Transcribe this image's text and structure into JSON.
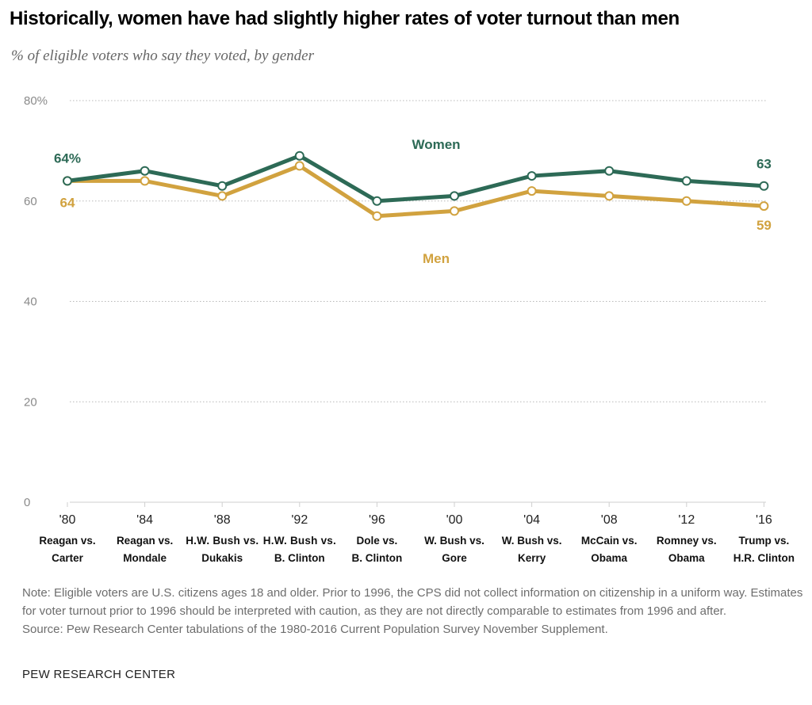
{
  "title": "Historically, women have had slightly higher rates of voter turnout than men",
  "subtitle": "% of eligible voters who say they voted, by gender",
  "chart_data": {
    "type": "line",
    "title": "Historically, women have had slightly higher rates of voter turnout than men",
    "subtitle": "% of eligible voters who say they voted, by gender",
    "x": [
      "'80",
      "'84",
      "'88",
      "'92",
      "'96",
      "'00",
      "'04",
      "'08",
      "'12",
      "'16"
    ],
    "matchups": [
      {
        "line1": "Reagan vs.",
        "line2": "Carter"
      },
      {
        "line1": "Reagan vs.",
        "line2": "Mondale"
      },
      {
        "line1": "H.W. Bush vs.",
        "line2": "Dukakis"
      },
      {
        "line1": "H.W. Bush vs.",
        "line2": "B. Clinton"
      },
      {
        "line1": "Dole vs.",
        "line2": "B. Clinton"
      },
      {
        "line1": "W. Bush vs.",
        "line2": "Gore"
      },
      {
        "line1": "W. Bush vs.",
        "line2": "Kerry"
      },
      {
        "line1": "McCain vs.",
        "line2": "Obama"
      },
      {
        "line1": "Romney vs.",
        "line2": "Obama"
      },
      {
        "line1": "Trump vs.",
        "line2": "H.R. Clinton"
      }
    ],
    "series": [
      {
        "name": "Women",
        "color": "#2d6a56",
        "values": [
          64,
          66,
          63,
          69,
          60,
          61,
          65,
          66,
          64,
          63
        ],
        "start_label": "64%",
        "end_label": "63"
      },
      {
        "name": "Men",
        "color": "#d1a23f",
        "values": [
          64,
          64,
          61,
          67,
          57,
          58,
          62,
          61,
          60,
          59
        ],
        "start_label": "64",
        "end_label": "59"
      }
    ],
    "ylim": [
      0,
      80
    ],
    "yticks": [
      0,
      20,
      40,
      60,
      80
    ],
    "ytick_labels": [
      "0",
      "20",
      "40",
      "60",
      "80%"
    ],
    "grid": true,
    "legend": "inline labels"
  },
  "note": "Note: Eligible voters are U.S. citizens ages 18 and older. Prior to 1996, the CPS did not collect information on citizenship in a uniform way. Estimates for voter turnout prior to 1996 should be interpreted with caution, as they are not directly comparable to estimates from 1996 and after.",
  "source": "Source: Pew Research Center tabulations of the 1980-2016 Current Population Survey November Supplement.",
  "org": "PEW RESEARCH CENTER"
}
